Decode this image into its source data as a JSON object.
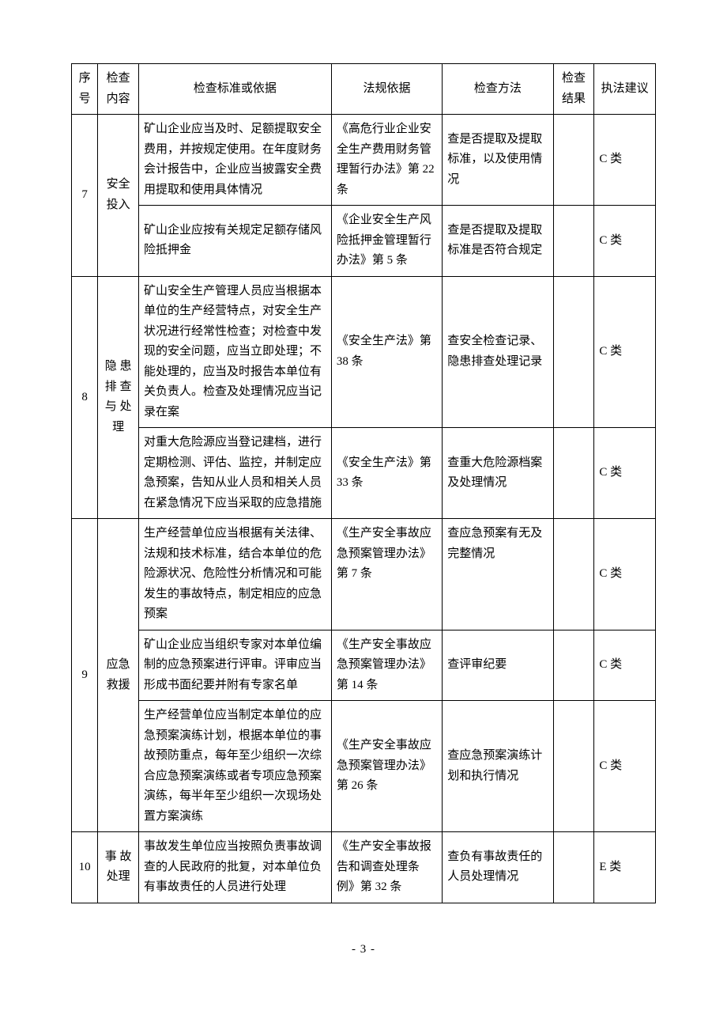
{
  "headers": {
    "seq": "序号",
    "category": "检查内容",
    "standard": "检查标准或依据",
    "law": "法规依据",
    "method": "检查方法",
    "result": "检查结果",
    "advice": "执法建议"
  },
  "rows": [
    {
      "seq": "7",
      "category": "安全投入",
      "sub": [
        {
          "standard": "矿山企业应当及时、足额提取安全费用，并按规定使用。在年度财务会计报告中，企业应当披露安全费用提取和使用具体情况",
          "law": "《高危行业企业安全生产费用财务管理暂行办法》第 22 条",
          "method": "查是否提取及提取标准，以及使用情况",
          "result": "",
          "advice": "C 类"
        },
        {
          "standard": "矿山企业应按有关规定足额存储风险抵押金",
          "law": "《企业安全生产风险抵押金管理暂行办法》第 5 条",
          "method": "查是否提取及提取标准是否符合规定",
          "result": "",
          "advice": "C 类"
        }
      ]
    },
    {
      "seq": "8",
      "category": "隐 患排 查与 处理",
      "sub": [
        {
          "standard": "矿山安全生产管理人员应当根据本单位的生产经营特点，对安全生产状况进行经常性检查；对检查中发现的安全问题，应当立即处理；不能处理的，应当及时报告本单位有关负责人。检查及处理情况应当记录在案",
          "law": "《安全生产法》第 38 条",
          "method": "查安全检查记录、隐患排查处理记录",
          "result": "",
          "advice": "C 类"
        },
        {
          "standard": "对重大危险源应当登记建档，进行定期检测、评估、监控，并制定应急预案，告知从业人员和相关人员在紧急情况下应当采取的应急措施",
          "law": "《安全生产法》第 33 条",
          "method": "查重大危险源档案及处理情况",
          "result": "",
          "advice": "C 类"
        }
      ]
    },
    {
      "seq": "9",
      "category": "应急救援",
      "sub": [
        {
          "standard": "生产经营单位应当根据有关法律、法规和技术标准，结合本单位的危险源状况、危险性分析情况和可能发生的事故特点，制定相应的应急预案",
          "law": "《生产安全事故应急预案管理办法》第 7 条",
          "method": "查应急预案有无及完整情况",
          "result": "",
          "advice": "C 类"
        },
        {
          "standard": "矿山企业应当组织专家对本单位编制的应急预案进行评审。评审应当形成书面纪要并附有专家名单",
          "law": "《生产安全事故应急预案管理办法》第 14 条",
          "method": "查评审纪要",
          "result": "",
          "advice": "C 类"
        },
        {
          "standard": "生产经营单位应当制定本单位的应急预案演练计划，根据本单位的事故预防重点，每年至少组织一次综合应急预案演练或者专项应急预案演练，每半年至少组织一次现场处置方案演练",
          "law": "《生产安全事故应急预案管理办法》第 26 条",
          "method": "查应急预案演练计划和执行情况",
          "result": "",
          "advice": "C 类"
        }
      ]
    },
    {
      "seq": "10",
      "category": "事 故处理",
      "sub": [
        {
          "standard": "事故发生单位应当按照负责事故调查的人民政府的批复，对本单位负有事故责任的人员进行处理",
          "law": "《生产安全事故报告和调查处理条例》第 32 条",
          "method": "查负有事故责任的人员处理情况",
          "result": "",
          "advice": "E 类"
        }
      ]
    }
  ],
  "pagenum": "- 3 -"
}
